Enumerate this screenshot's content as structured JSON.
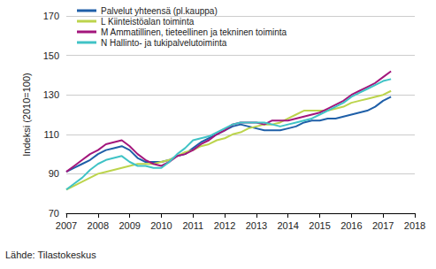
{
  "chart_data": {
    "type": "line",
    "y_label": "Indeksi (2010=100)",
    "source": "Lähde: Tilastokeskus",
    "legend": "upper left",
    "grid": true,
    "xlim": [
      2007,
      2018
    ],
    "xticks": [
      2007,
      2008,
      2009,
      2010,
      2011,
      2012,
      2013,
      2014,
      2015,
      2016,
      2017,
      2018
    ],
    "ylim": [
      70,
      170
    ],
    "yticks": [
      70,
      90,
      110,
      130,
      150,
      170
    ],
    "x": [
      2007,
      2007.25,
      2007.5,
      2007.75,
      2008,
      2008.25,
      2008.5,
      2008.75,
      2009,
      2009.25,
      2009.5,
      2009.75,
      2010,
      2010.25,
      2010.5,
      2010.75,
      2011,
      2011.25,
      2011.5,
      2011.75,
      2012,
      2012.25,
      2012.5,
      2012.75,
      2013,
      2013.25,
      2013.5,
      2013.75,
      2014,
      2014.25,
      2014.5,
      2014.75,
      2015,
      2015.25,
      2015.5,
      2015.75,
      2016,
      2016.25,
      2016.5,
      2016.75,
      2017,
      2017.25
    ],
    "series": [
      {
        "name": "Palvelut yhteensä (pl.kauppa)",
        "color": "#1f5fa8",
        "values": [
          91,
          93,
          95,
          97,
          100,
          102,
          103,
          104,
          102,
          98,
          96,
          96,
          96,
          97,
          99,
          100,
          103,
          106,
          108,
          110,
          112,
          114,
          115,
          114,
          113,
          112,
          112,
          112,
          113,
          114,
          116,
          117,
          117,
          118,
          118,
          119,
          120,
          121,
          122,
          124,
          127,
          129
        ]
      },
      {
        "name": "L Kiinteistöalan toiminta",
        "color": "#bcd44c",
        "values": [
          82,
          84,
          86,
          88,
          90,
          91,
          92,
          93,
          94,
          95,
          95,
          95,
          96,
          97,
          99,
          101,
          102,
          104,
          105,
          107,
          108,
          110,
          111,
          113,
          114,
          115,
          115,
          116,
          118,
          120,
          122,
          122,
          122,
          122,
          123,
          124,
          126,
          127,
          128,
          129,
          130,
          132
        ]
      },
      {
        "name": "M Ammatillinen, tieteellinen ja tekninen toiminta",
        "color": "#a3167c",
        "values": [
          91,
          94,
          97,
          100,
          102,
          105,
          106,
          107,
          104,
          100,
          97,
          95,
          94,
          96,
          99,
          100,
          102,
          105,
          107,
          110,
          112,
          115,
          116,
          116,
          116,
          115,
          117,
          117,
          117,
          118,
          119,
          120,
          121,
          123,
          125,
          127,
          130,
          132,
          134,
          136,
          139,
          142
        ]
      },
      {
        "name": "N Hallinto- ja tukipalvelutoiminta",
        "color": "#40c3c6",
        "values": [
          82,
          85,
          88,
          92,
          95,
          97,
          98,
          99,
          96,
          94,
          94,
          93,
          93,
          96,
          100,
          103,
          107,
          108,
          109,
          111,
          113,
          115,
          116,
          116,
          116,
          116,
          115,
          114,
          115,
          116,
          117,
          118,
          120,
          122,
          124,
          126,
          129,
          131,
          133,
          135,
          137,
          138
        ]
      }
    ]
  }
}
